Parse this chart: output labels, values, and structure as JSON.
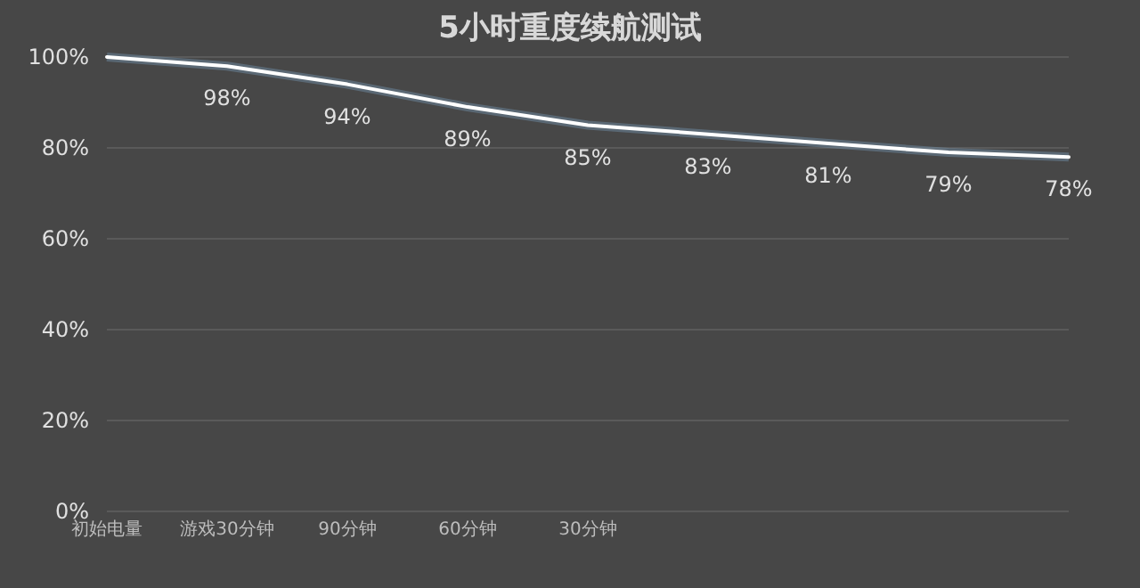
{
  "chart_data": {
    "type": "line",
    "title": "5小时重度续航测试",
    "categories": [
      "初始电量",
      "游戏30分钟",
      "90分钟",
      "60分钟",
      "30分钟",
      null,
      null,
      null,
      null
    ],
    "series": [
      {
        "color": "#ffffff",
        "values": [
          100,
          98,
          94,
          89,
          85,
          83,
          81,
          79,
          78
        ],
        "value_labels": [
          null,
          "98%",
          "94%",
          "89%",
          "85%",
          "83%",
          "81%",
          "79%",
          "78%"
        ]
      }
    ],
    "ylim": [
      0,
      100
    ],
    "yticks": [
      {
        "value": 0,
        "label": "0%"
      },
      {
        "value": 20,
        "label": "20%"
      },
      {
        "value": 40,
        "label": "40%"
      },
      {
        "value": 60,
        "label": "60%"
      },
      {
        "value": 80,
        "label": "80%"
      },
      {
        "value": 100,
        "label": "100%"
      }
    ],
    "grid": "y",
    "marker": "none",
    "line_style": "solid"
  }
}
